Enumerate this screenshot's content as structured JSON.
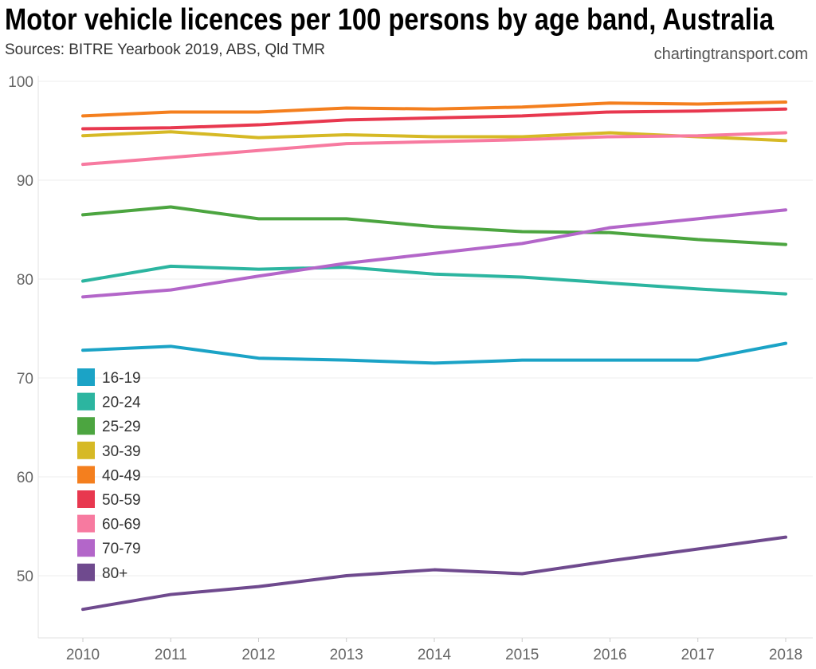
{
  "chart_data": {
    "type": "line",
    "title": "Motor vehicle licences per 100 persons by age band, Australia",
    "subtitle": "Sources: BITRE Yearbook 2019, ABS, Qld TMR",
    "credit": "chartingtransport.com",
    "xlabel": "",
    "ylabel": "",
    "x": [
      2010,
      2011,
      2012,
      2013,
      2014,
      2015,
      2016,
      2017,
      2018
    ],
    "ylim": [
      45,
      100
    ],
    "yticks": [
      50,
      60,
      70,
      80,
      90,
      100
    ],
    "grid": true,
    "legend_position": "bottom-left",
    "series": [
      {
        "name": "16-19",
        "color": "#1ba3c6",
        "values": [
          72.8,
          73.2,
          72.0,
          71.8,
          71.5,
          71.8,
          71.8,
          71.8,
          73.5
        ]
      },
      {
        "name": "20-24",
        "color": "#2cb5a0",
        "values": [
          79.8,
          81.3,
          81.0,
          81.2,
          80.5,
          80.2,
          79.6,
          79.0,
          78.5
        ]
      },
      {
        "name": "25-29",
        "color": "#4ca540",
        "values": [
          86.5,
          87.3,
          86.1,
          86.1,
          85.3,
          84.8,
          84.7,
          84.0,
          83.5
        ]
      },
      {
        "name": "30-39",
        "color": "#d6b925",
        "values": [
          94.5,
          94.9,
          94.3,
          94.6,
          94.4,
          94.4,
          94.8,
          94.4,
          94.0
        ]
      },
      {
        "name": "40-49",
        "color": "#f47f1e",
        "values": [
          96.5,
          96.9,
          96.9,
          97.3,
          97.2,
          97.4,
          97.8,
          97.7,
          97.9
        ]
      },
      {
        "name": "50-59",
        "color": "#e8384f",
        "values": [
          95.2,
          95.3,
          95.6,
          96.1,
          96.3,
          96.5,
          96.9,
          97.0,
          97.2
        ]
      },
      {
        "name": "60-69",
        "color": "#f77aa0",
        "values": [
          91.6,
          92.3,
          93.0,
          93.7,
          93.9,
          94.1,
          94.4,
          94.5,
          94.8
        ]
      },
      {
        "name": "70-79",
        "color": "#b366c9",
        "values": [
          78.2,
          78.9,
          80.3,
          81.6,
          82.6,
          83.6,
          85.2,
          86.1,
          87.0
        ]
      },
      {
        "name": "80+",
        "color": "#6f4a8e",
        "values": [
          46.6,
          48.1,
          48.9,
          50.0,
          50.6,
          50.2,
          51.5,
          52.7,
          53.9
        ]
      }
    ]
  }
}
